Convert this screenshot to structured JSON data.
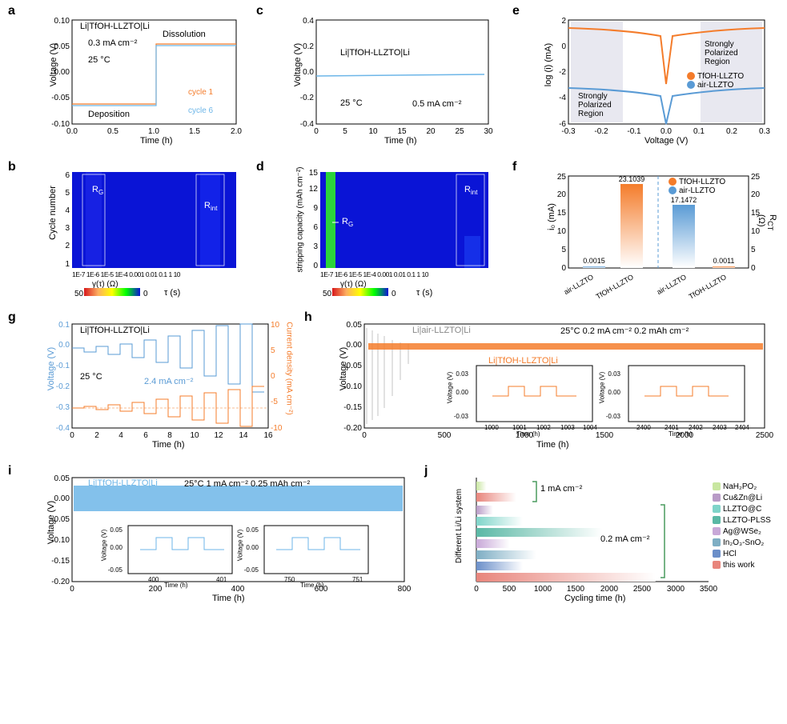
{
  "colors": {
    "orange": "#f47c2b",
    "blue": "#5a9bd5",
    "lightblue": "#6db6e8",
    "gray": "#888888",
    "axis": "#333333",
    "heatmap_blue": "#0a14d6",
    "heatmap_green": "#2cd43a"
  },
  "a": {
    "label": "a",
    "title": "Li|TfOH-LLZTO|Li",
    "condition1": "0.3 mA cm⁻²",
    "condition2": "25 °C",
    "anno_dep": "Deposition",
    "anno_dis": "Dissolution",
    "legend1": "cycle 1",
    "legend2": "cycle 6",
    "xlabel": "Time (h)",
    "ylabel": "Voltage (V)",
    "xlim": [
      0.0,
      2.0
    ],
    "xstep": 0.5,
    "ylim": [
      -0.1,
      0.1
    ],
    "ystep": 0.05
  },
  "b": {
    "label": "b",
    "xlabel": "τ (s)",
    "ylabel": "Cycle number",
    "ylim": [
      1,
      6
    ],
    "cb_label": "γ(τ) (Ω)",
    "cb_max": "50",
    "cb_min": "0",
    "rg": "R",
    "rg_sub": "G",
    "rint": "R",
    "rint_sub": "int",
    "xticks": [
      "1E-7",
      "1E-6",
      "1E-5",
      "1E-4",
      "0.001",
      "0.01",
      "0.1",
      "1",
      "10"
    ]
  },
  "c": {
    "label": "c",
    "title": "Li|TfOH-LLZTO|Li",
    "cond1": "25 °C",
    "cond2": "0.5 mA cm⁻²",
    "xlabel": "Time (h)",
    "ylabel": "Voltage (V)",
    "xlim": [
      0,
      30
    ],
    "xstep": 5,
    "ylim": [
      -0.4,
      0.4
    ],
    "ystep": 0.2
  },
  "d": {
    "label": "d",
    "xlabel": "τ (s)",
    "ylabel": "stripping capacity (mAh cm⁻²)",
    "ylim": [
      0,
      15
    ],
    "ystep": 3,
    "cb_label": "γ(τ) (Ω)",
    "cb_max": "50",
    "cb_min": "0",
    "rg": "R",
    "rg_sub": "G",
    "rint": "R",
    "rint_sub": "int",
    "xticks": [
      "1E-7",
      "1E-6",
      "1E-5",
      "1E-4",
      "0.001",
      "0.01",
      "0.1",
      "1",
      "10"
    ]
  },
  "e": {
    "label": "e",
    "xlabel": "Voltage (V)",
    "ylabel": "log (i) (mA)",
    "xlim": [
      -0.3,
      0.3
    ],
    "xstep": 0.1,
    "ylim": [
      -6,
      2
    ],
    "ystep": 2,
    "region_label": "Strongly\nPolarized\nRegion",
    "legend1": "TfOH-LLZTO",
    "legend2": "air-LLZTO"
  },
  "f": {
    "label": "f",
    "ylabel_left": "i₀ (mA)",
    "ylabel_right": "R",
    "ylabel_right_sub": "CT",
    "ylabel_right_unit": " (Ω)",
    "legend1": "TfOH-LLZTO",
    "legend2": "air-LLZTO",
    "cats": [
      "air-LLZTO",
      "TfOH-LLZTO",
      "air-LLZTO",
      "TfOH-LLZTO"
    ],
    "vals": [
      "0.0015",
      "23.1039",
      "17.1472",
      "0.0011"
    ],
    "i0_max": 25,
    "rct_max": 25
  },
  "g": {
    "label": "g",
    "title": "Li|TfOH-LLZTO|Li",
    "cond": "25 °C",
    "ccd": "2.4 mA cm⁻²",
    "xlabel": "Time (h)",
    "ylabel": "Voltage (V)",
    "ylabel2": "Current density (mA cm⁻²)",
    "xlim": [
      0,
      16
    ],
    "xstep": 2,
    "ylim": [
      -0.4,
      0.1
    ],
    "ystep": 0.1,
    "y2lim": [
      -10,
      10
    ],
    "y2step": 5
  },
  "h": {
    "label": "h",
    "series1": "Li|air-LLZTO|Li",
    "series2": "Li|TfOH-LLZTO|Li",
    "cond": "25°C   0.2 mA cm⁻²   0.2 mAh cm⁻²",
    "xlabel": "Time (h)",
    "ylabel": "Voltage (V)",
    "xlim": [
      0,
      2500
    ],
    "xstep": 500,
    "ylim": [
      -0.2,
      0.05
    ],
    "ystep": 0.05,
    "inset1_xlim": [
      1000,
      1004
    ],
    "inset_ylim": [
      -0.03,
      0.03
    ],
    "inset2_xlim": [
      2400,
      2404
    ],
    "inset_xlabel": "Time (h)",
    "inset_ylabel": "Voltage (V)"
  },
  "i": {
    "label": "i",
    "title": "Li|TfOH-LLZTO|Li",
    "cond": "25°C   1 mA cm⁻²   0.25 mAh cm⁻²",
    "xlabel": "Time (h)",
    "ylabel": "Voltage (V)",
    "xlim": [
      0,
      800
    ],
    "xstep": 200,
    "ylim": [
      -0.2,
      0.05
    ],
    "ystep": 0.05,
    "inset1_xlim": [
      400,
      401
    ],
    "inset2_xlim": [
      750,
      751
    ],
    "inset_ylim": [
      -0.05,
      0.05
    ],
    "inset_xlabel": "Time (h)",
    "inset_ylabel": "Voltage (V)"
  },
  "j": {
    "label": "j",
    "xlabel": "Cycling time (h)",
    "ylabel": "Different Li/Li system",
    "xlim": [
      0,
      3500
    ],
    "xstep": 500,
    "anno1": "1 mA cm⁻²",
    "anno2": "0.2 mA cm⁻²",
    "items": [
      {
        "name": "NaH₂PO₂",
        "color": "#c8e6a0",
        "value": 150
      },
      {
        "name": "Cu&Zn@Li",
        "color": "#b89bc7",
        "value": 250
      },
      {
        "name": "LLZTO@C",
        "color": "#7fd4c9",
        "value": 700
      },
      {
        "name": "LLZTO-PLSS",
        "color": "#5ab8a5",
        "value": 1900
      },
      {
        "name": "Ag@WSe₂",
        "color": "#c8a8d8",
        "value": 500
      },
      {
        "name": "In₂O₃-SnO₂",
        "color": "#7eaec4",
        "value": 900
      },
      {
        "name": "HCl",
        "color": "#6b8fc9",
        "value": 700
      },
      {
        "name": "this work",
        "color": "#e8857c",
        "value": 600
      }
    ],
    "thiswork_bottom": {
      "color": "#e8857c",
      "value": 2700
    }
  }
}
